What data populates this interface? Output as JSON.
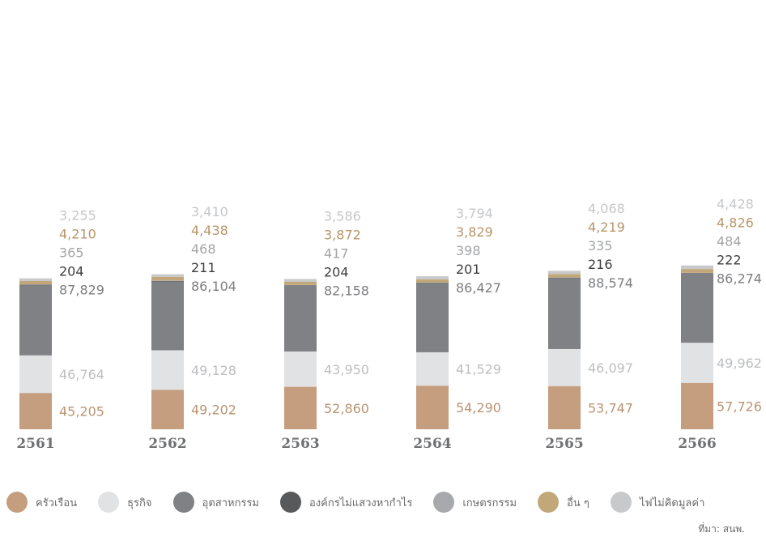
{
  "chart_data": {
    "type": "bar",
    "stacked": true,
    "categories": [
      "2561",
      "2562",
      "2563",
      "2564",
      "2565",
      "2566"
    ],
    "series": [
      {
        "key": "household",
        "name": "ครัวเรือน",
        "color": "#c49e7e",
        "label_color": "#b99473",
        "values": [
          45205,
          49202,
          52860,
          54290,
          53747,
          57726
        ]
      },
      {
        "key": "business",
        "name": "ธุรกิจ",
        "color": "#e1e2e4",
        "label_color": "#bdbec0",
        "values": [
          46764,
          49128,
          43950,
          41529,
          46097,
          49962
        ]
      },
      {
        "key": "industry",
        "name": "อุตสาหกรรม",
        "color": "#808184",
        "label_color": "#7d7e80",
        "values": [
          87829,
          86104,
          82158,
          86427,
          88574,
          86274
        ]
      },
      {
        "key": "nonprofit",
        "name": "องค์กรไม่แสวงหากำไร",
        "color": "#58595b",
        "label_color": "#3e3e40",
        "values": [
          204,
          211,
          204,
          201,
          216,
          222
        ]
      },
      {
        "key": "agriculture",
        "name": "เกษตรกรรม",
        "color": "#a7a9ac",
        "label_color": "#a3a4a6",
        "values": [
          365,
          468,
          417,
          398,
          335,
          484
        ]
      },
      {
        "key": "other",
        "name": "อื่น ๆ",
        "color": "#c2a878",
        "label_color": "#b8956a",
        "values": [
          4210,
          4438,
          3872,
          3829,
          4219,
          4826
        ]
      },
      {
        "key": "free",
        "name": "ไฟไม่คิดมูลค่า",
        "color": "#c8c9cb",
        "label_color": "#c6c7c9",
        "values": [
          3255,
          3410,
          3586,
          3794,
          4068,
          4428
        ]
      }
    ],
    "value_labels": [
      [
        "45,205",
        "46,764",
        "87,829",
        "204",
        "365",
        "4,210",
        "3,255"
      ],
      [
        "49,202",
        "49,128",
        "86,104",
        "211",
        "468",
        "4,438",
        "3,410"
      ],
      [
        "52,860",
        "43,950",
        "82,158",
        "204",
        "417",
        "3,872",
        "3,586"
      ],
      [
        "54,290",
        "41,529",
        "86,427",
        "201",
        "398",
        "3,829",
        "3,794"
      ],
      [
        "53,747",
        "46,097",
        "88,574",
        "216",
        "335",
        "4,219",
        "4,068"
      ],
      [
        "57,726",
        "49,962",
        "86,274",
        "222",
        "484",
        "4,826",
        "4,428"
      ]
    ],
    "title": "",
    "xlabel": "",
    "ylabel": "",
    "ylim": [
      0,
      210000
    ],
    "grid": false,
    "legend_position": "bottom"
  },
  "source": "ที่มา: สนพ."
}
